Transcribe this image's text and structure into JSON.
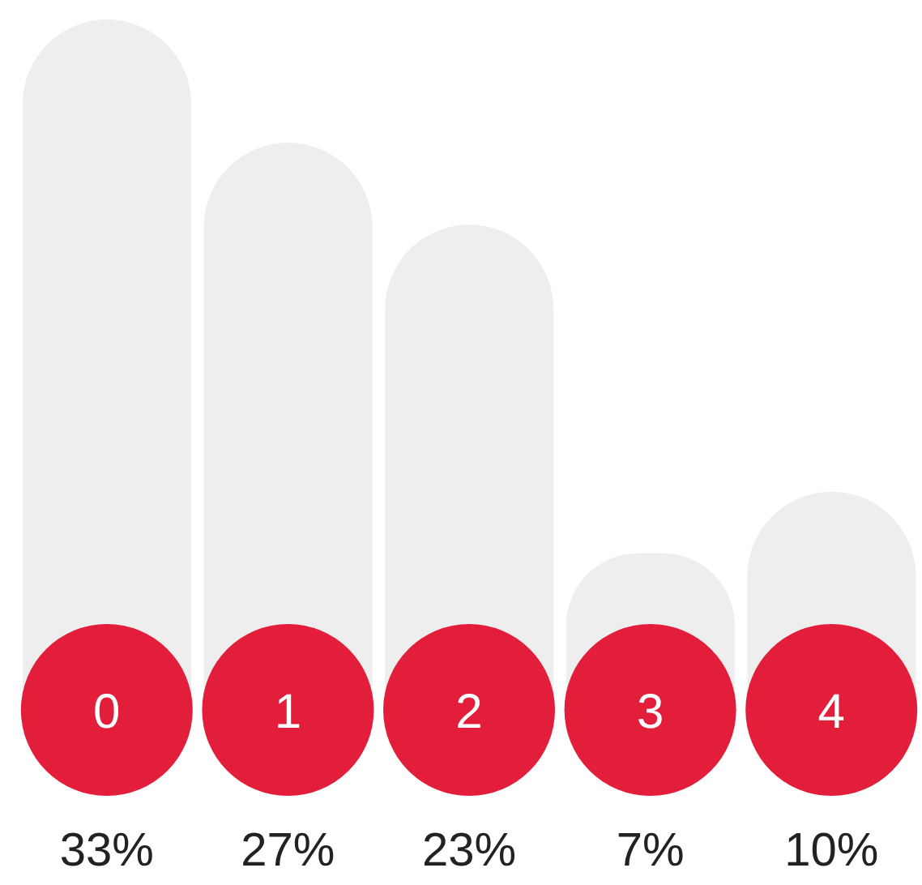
{
  "chart_data": {
    "type": "bar",
    "categories": [
      "0",
      "1",
      "2",
      "3",
      "4"
    ],
    "values": [
      33,
      27,
      23,
      7,
      10
    ],
    "color": "#eeeeee",
    "value_labels": [
      "33%",
      "27%",
      "23%",
      "7%",
      "10%"
    ]
  }
}
